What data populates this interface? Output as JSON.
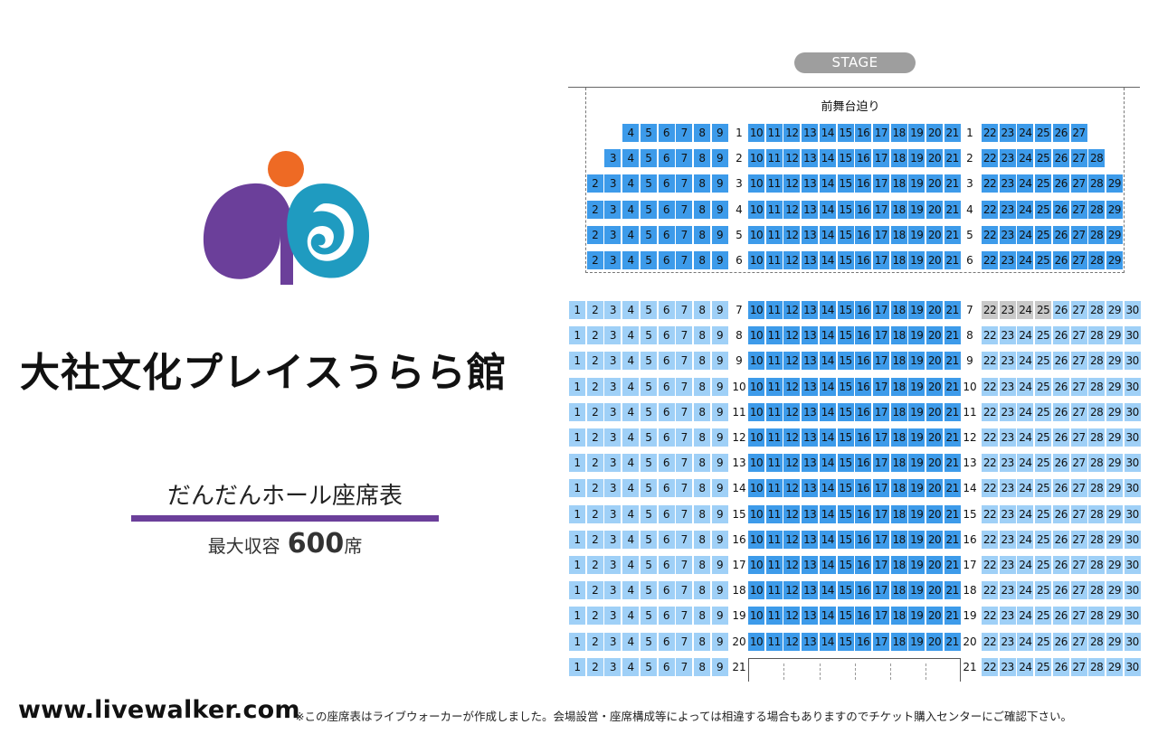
{
  "stage": {
    "label": "STAGE",
    "front_label": "前舞台迫り"
  },
  "venue": {
    "title": "大社文化プレイスうらら館",
    "hall": "だんだんホール座席表",
    "capacity_label": "最大収容",
    "capacity_value": "600",
    "capacity_unit": "席"
  },
  "footer": {
    "site": "www.livewalker.com",
    "note": "※この座席表はライブウォーカーが作成しました。会場設営・座席構成等によっては相違する場合もありますのでチケット購入センターにご確認下さい。"
  },
  "colors": {
    "front_seat": "#3d9bea",
    "main_seat": "#9fd0f7",
    "unavailable_seat": "#c9c9c9",
    "accent_purple": "#6b3f9a",
    "logo_orange": "#ee6a24",
    "logo_teal": "#1f9bc0"
  },
  "seating": {
    "front_rows": [
      {
        "row": "1",
        "left": [
          4,
          5,
          6,
          7,
          8,
          9
        ],
        "center": [
          10,
          11,
          12,
          13,
          14,
          15,
          16,
          17,
          18,
          19,
          20,
          21
        ],
        "right": [
          22,
          23,
          24,
          25,
          26,
          27
        ]
      },
      {
        "row": "2",
        "left": [
          3,
          4,
          5,
          6,
          7,
          8,
          9
        ],
        "center": [
          10,
          11,
          12,
          13,
          14,
          15,
          16,
          17,
          18,
          19,
          20,
          21
        ],
        "right": [
          22,
          23,
          24,
          25,
          26,
          27,
          28
        ]
      },
      {
        "row": "3",
        "left": [
          2,
          3,
          4,
          5,
          6,
          7,
          8,
          9
        ],
        "center": [
          10,
          11,
          12,
          13,
          14,
          15,
          16,
          17,
          18,
          19,
          20,
          21
        ],
        "right": [
          22,
          23,
          24,
          25,
          26,
          27,
          28,
          29
        ]
      },
      {
        "row": "4",
        "left": [
          2,
          3,
          4,
          5,
          6,
          7,
          8,
          9
        ],
        "center": [
          10,
          11,
          12,
          13,
          14,
          15,
          16,
          17,
          18,
          19,
          20,
          21
        ],
        "right": [
          22,
          23,
          24,
          25,
          26,
          27,
          28,
          29
        ]
      },
      {
        "row": "5",
        "left": [
          2,
          3,
          4,
          5,
          6,
          7,
          8,
          9
        ],
        "center": [
          10,
          11,
          12,
          13,
          14,
          15,
          16,
          17,
          18,
          19,
          20,
          21
        ],
        "right": [
          22,
          23,
          24,
          25,
          26,
          27,
          28,
          29
        ]
      },
      {
        "row": "6",
        "left": [
          2,
          3,
          4,
          5,
          6,
          7,
          8,
          9
        ],
        "center": [
          10,
          11,
          12,
          13,
          14,
          15,
          16,
          17,
          18,
          19,
          20,
          21
        ],
        "right": [
          22,
          23,
          24,
          25,
          26,
          27,
          28,
          29
        ]
      }
    ],
    "main_rows": [
      "7",
      "8",
      "9",
      "10",
      "11",
      "12",
      "13",
      "14",
      "15",
      "16",
      "17",
      "18",
      "19",
      "20",
      "21"
    ],
    "main_left": [
      1,
      2,
      3,
      4,
      5,
      6,
      7,
      8,
      9
    ],
    "main_center": [
      10,
      11,
      12,
      13,
      14,
      15,
      16,
      17,
      18,
      19,
      20,
      21
    ],
    "main_right": [
      22,
      23,
      24,
      25,
      26,
      27,
      28,
      29,
      30
    ],
    "unavailable": {
      "row": "7",
      "seats": [
        22,
        23,
        24,
        25
      ]
    },
    "row21_center_empty": true
  }
}
